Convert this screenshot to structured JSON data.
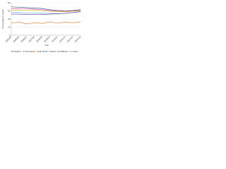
{
  "chart_data": {
    "type": "line",
    "x_label": "Year",
    "y_label": "Percentage of pupils",
    "categories": [
      "2004/05",
      "2005/06",
      "2006/07",
      "2007/08",
      "2008/09",
      "2009/10",
      "2010/11",
      "2011/12",
      "2012/13",
      "2013/14"
    ],
    "series": [
      {
        "name": "England",
        "color": "#1f3f7f",
        "values": [
          70,
          69,
          68,
          67,
          66,
          63,
          61,
          60,
          61,
          63
        ]
      },
      {
        "name": "North East",
        "color": "#c0307f",
        "values": [
          66,
          65,
          65,
          64,
          63,
          61,
          60,
          59,
          60,
          62
        ]
      },
      {
        "name": "North West",
        "color": "#e0c020",
        "values": [
          62,
          62,
          61,
          61,
          60,
          59,
          58,
          58,
          59,
          61
        ]
      },
      {
        "name": "Yorkshire",
        "color": "#30b0d0",
        "values": [
          56,
          56,
          55,
          55,
          54,
          54,
          53,
          54,
          56,
          59
        ]
      },
      {
        "name": "Midlands",
        "color": "#7030a0",
        "values": [
          52,
          52,
          51,
          51,
          51,
          52,
          53,
          54,
          56,
          58
        ]
      },
      {
        "name": "London",
        "color": "#e07020",
        "values": [
          30,
          32,
          28,
          31,
          29,
          33,
          30,
          32,
          31,
          33
        ]
      }
    ],
    "ylim": [
      0,
      80
    ],
    "yticks": [
      0,
      20,
      40,
      60,
      80
    ],
    "grid": true
  }
}
